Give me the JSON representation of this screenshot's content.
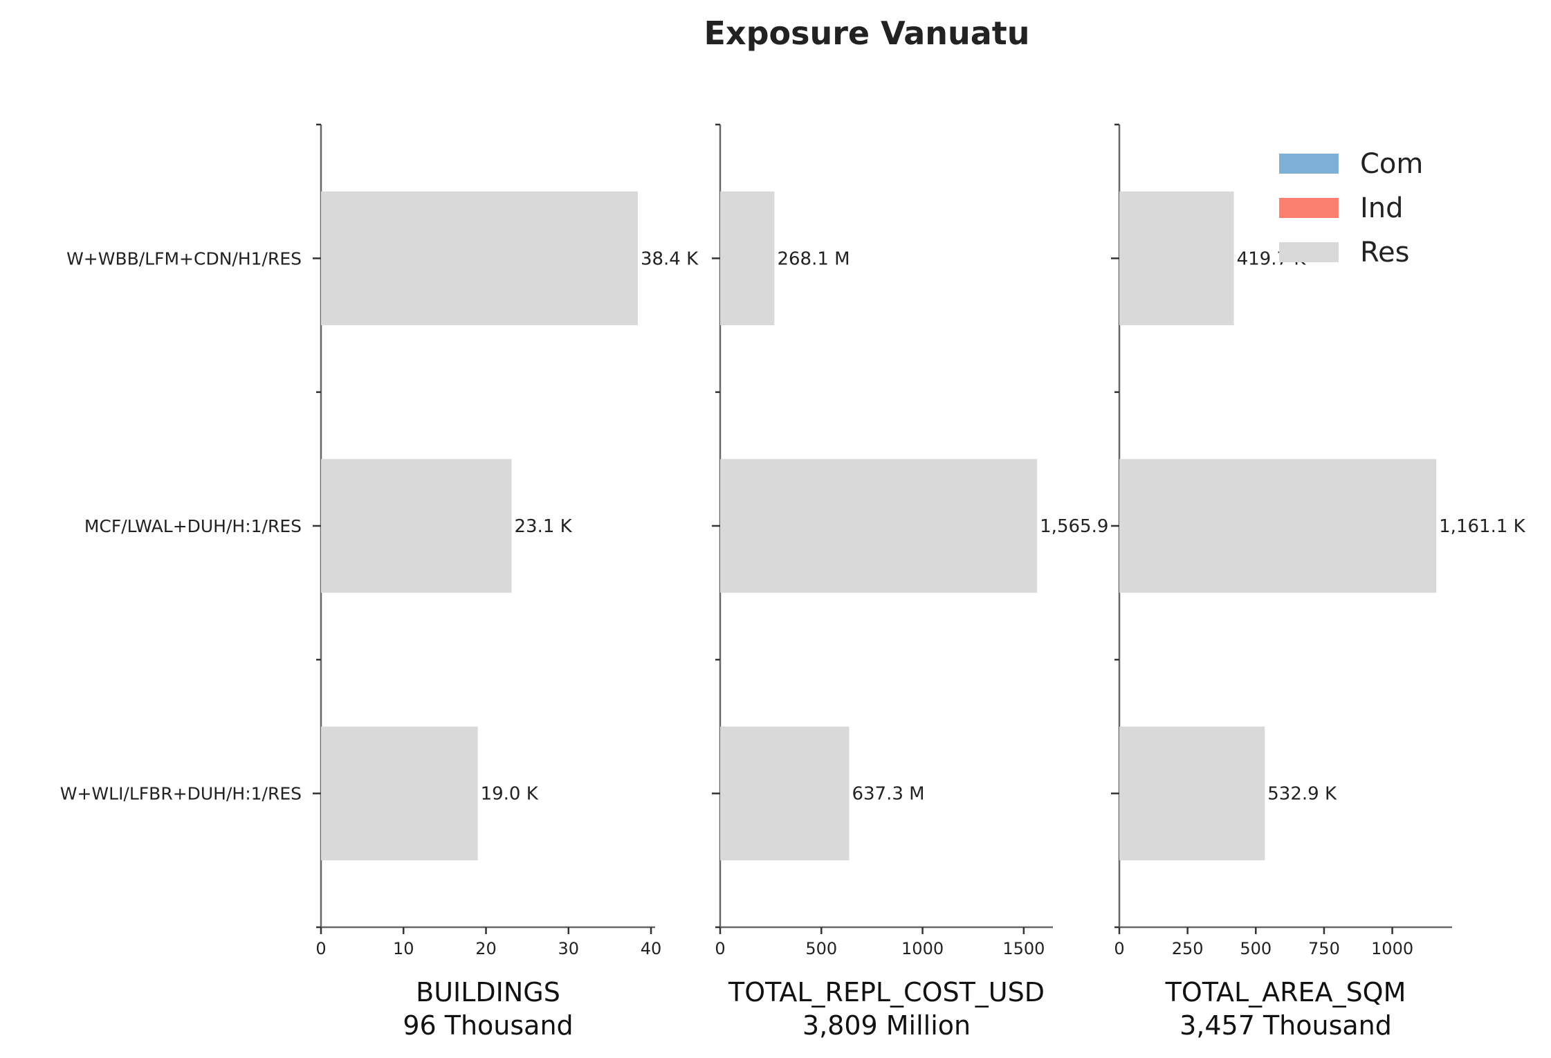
{
  "chart_data": {
    "type": "bar",
    "orientation": "horizontal",
    "title": "Exposure Vanuatu",
    "categories": [
      "W+WBB/LFM+CDN/H1/RES",
      "MCF/LWAL+DUH/H:1/RES",
      "W+WLI/LFBR+DUH/H:1/RES"
    ],
    "legend": {
      "placement": "top-right",
      "entries": [
        {
          "name": "Com",
          "color": "#7eb0d5"
        },
        {
          "name": "Ind",
          "color": "#fd7f6f"
        },
        {
          "name": "Res",
          "color": "#d9d9d9"
        }
      ]
    },
    "grid": false,
    "panels": [
      {
        "xlabel": "BUILDINGS",
        "total_label": "96 Thousand",
        "xlim": [
          0,
          40.5
        ],
        "xticks": [
          0,
          10,
          20,
          30,
          40
        ],
        "series": [
          {
            "name": "Res",
            "values": [
              38.4,
              23.1,
              19.0
            ]
          }
        ],
        "value_labels": [
          "38.4 K",
          "23.1 K",
          "19.0 K"
        ]
      },
      {
        "xlabel": "TOTAL_REPL_COST_USD",
        "total_label": "3,809 Million",
        "xlim": [
          0,
          1644
        ],
        "xticks": [
          0,
          500,
          1000,
          1500
        ],
        "series": [
          {
            "name": "Res",
            "values": [
              268.1,
              1565.9,
              637.3
            ]
          }
        ],
        "value_labels": [
          "268.1 M",
          "1,565.9",
          "637.3 M"
        ]
      },
      {
        "xlabel": "TOTAL_AREA_SQM",
        "total_label": "3,457 Thousand",
        "xlim": [
          0,
          1219
        ],
        "xticks": [
          0,
          250,
          500,
          750,
          1000
        ],
        "series": [
          {
            "name": "Res",
            "values": [
              419.7,
              1161.1,
              532.9
            ]
          }
        ],
        "value_labels": [
          "419.7 K",
          "1,161.1 K",
          "532.9 K"
        ]
      }
    ]
  }
}
